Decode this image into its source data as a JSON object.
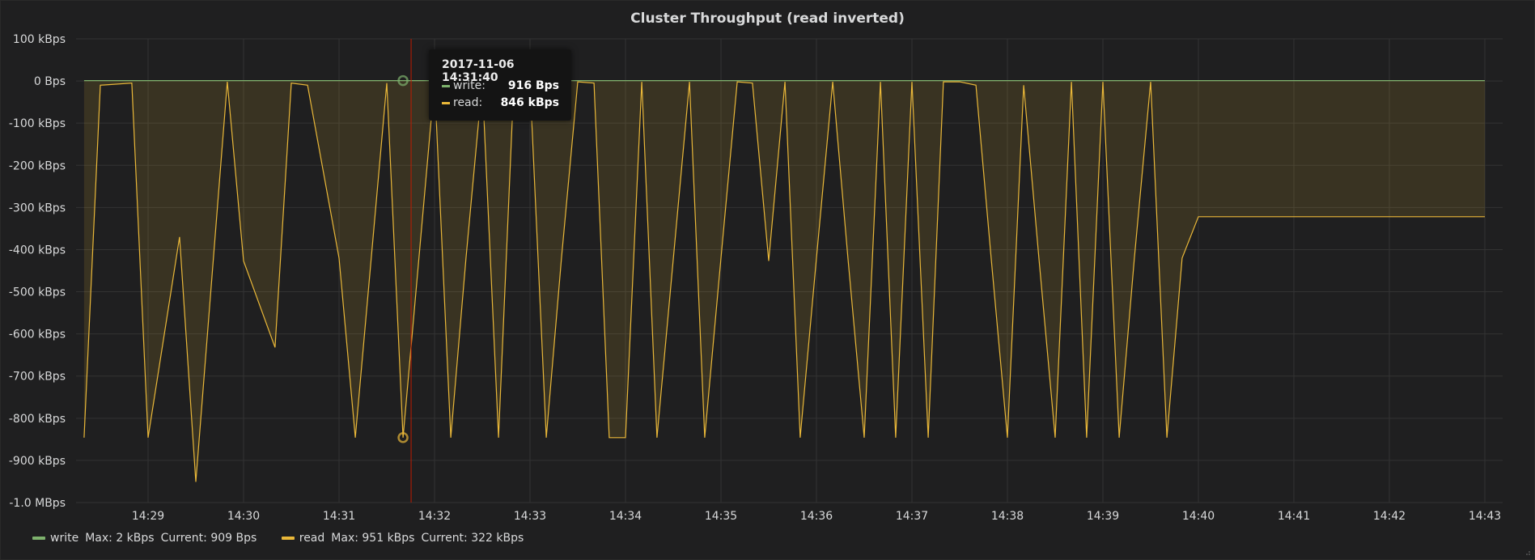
{
  "panel": {
    "title": "Cluster Throughput (read inverted)"
  },
  "colors": {
    "write": "#7eb26d",
    "read": "#eab839",
    "grid": "#333333",
    "cursor": "#bf1b00",
    "background": "#1f1f20"
  },
  "tooltip": {
    "time": "2017-11-06 14:31:40",
    "rows": [
      {
        "name": "write:",
        "value": "916 Bps"
      },
      {
        "name": "read:",
        "value": "846 kBps"
      }
    ]
  },
  "legend": [
    {
      "name": "write",
      "max": "Max: 2 kBps",
      "current": "Current: 909 Bps"
    },
    {
      "name": "read",
      "max": "Max: 951 kBps",
      "current": "Current: 322 kBps"
    }
  ],
  "chart_data": {
    "type": "area",
    "title": "Cluster Throughput (read inverted)",
    "x_ticks": [
      "14:29",
      "14:30",
      "14:31",
      "14:32",
      "14:33",
      "14:34",
      "14:35",
      "14:36",
      "14:37",
      "14:38",
      "14:39",
      "14:40",
      "14:41",
      "14:42",
      "14:43"
    ],
    "y_ticks": [
      "100 kBps",
      "0 Bps",
      "-100 kBps",
      "-200 kBps",
      "-300 kBps",
      "-400 kBps",
      "-500 kBps",
      "-600 kBps",
      "-700 kBps",
      "-800 kBps",
      "-900 kBps",
      "-1.0 MBps"
    ],
    "ylim": [
      -1000,
      100
    ],
    "y_unit": "kBps",
    "xlim_minutes_from_1429": [
      -0.67,
      14.02
    ],
    "legend_position": "bottom-left",
    "grid": true,
    "series": [
      {
        "name": "write",
        "color": "#7eb26d",
        "fill": false,
        "x": [
          -0.67,
          14.0
        ],
        "y": [
          1,
          1
        ]
      },
      {
        "name": "read",
        "color": "#eab839",
        "fill": true,
        "x": [
          -0.67,
          -0.5,
          -0.17,
          0.0,
          0.33,
          0.5,
          0.83,
          1.0,
          1.33,
          1.5,
          1.67,
          2.0,
          2.17,
          2.5,
          2.67,
          3.0,
          3.17,
          3.33,
          3.5,
          3.67,
          3.83,
          4.0,
          4.17,
          4.33,
          4.5,
          4.67,
          4.83,
          5.0,
          5.17,
          5.33,
          5.67,
          5.83,
          6.0,
          6.17,
          6.33,
          6.5,
          6.67,
          6.83,
          7.0,
          7.17,
          7.33,
          7.5,
          7.67,
          7.83,
          8.0,
          8.17,
          8.33,
          8.5,
          8.67,
          8.83,
          9.0,
          9.17,
          9.33,
          9.5,
          9.67,
          9.83,
          10.0,
          10.17,
          10.33,
          10.5,
          10.67,
          10.83,
          11.0,
          11.17,
          11.33,
          11.5,
          11.67,
          11.83,
          12.0,
          12.17,
          12.33,
          12.5,
          12.67,
          12.83,
          13.0,
          13.17,
          13.33,
          13.5,
          13.67,
          13.83,
          14.0
        ],
        "y": [
          -846,
          -10,
          -5,
          -846,
          -370,
          -951,
          -2,
          -427,
          -632,
          -5,
          -10,
          -420,
          -846,
          -5,
          -846,
          -2,
          -846,
          -420,
          -2,
          -846,
          -10,
          -5,
          -846,
          -420,
          -2,
          -5,
          -846,
          -846,
          -2,
          -846,
          -2,
          -846,
          -420,
          -2,
          -5,
          -427,
          -2,
          -846,
          -420,
          -2,
          -420,
          -846,
          -2,
          -846,
          -2,
          -846,
          -2,
          -2,
          -10,
          -420,
          -846,
          -10,
          -420,
          -846,
          -2,
          -846,
          -2,
          -846,
          -420,
          -2,
          -846,
          -420,
          -322,
          -322,
          -322,
          -322,
          -322,
          -322,
          -322,
          -322,
          -322,
          -322,
          -322,
          -322,
          -322,
          -322,
          -322,
          -322,
          -322,
          -322,
          -322
        ]
      }
    ]
  }
}
